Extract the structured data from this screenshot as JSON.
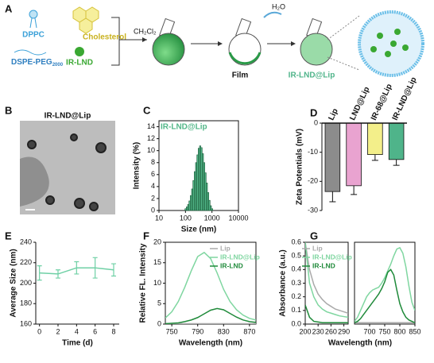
{
  "panel_labels": [
    "A",
    "B",
    "C",
    "D",
    "E",
    "F",
    "G"
  ],
  "schematic": {
    "dppc": "DPPC",
    "cholesterol": "Cholesterol",
    "peg": "DSPE-PEG",
    "peg_sub": "2000",
    "irlnd": "IR-LND",
    "solvent": "CH₂Cl₂",
    "water": "H₂O",
    "film": "Film",
    "product": "IR-LND@Lip"
  },
  "tem": {
    "title": "IR-LND@Lip"
  },
  "chart_data": [
    {
      "type": "histogram",
      "title": "IR-LND@Lip",
      "xlabel": "Size (nm)",
      "ylabel": "Intensity (%)",
      "xscale": "log",
      "bins": [
        95.5,
        107.2,
        120.2,
        134.9,
        151.4,
        169.8,
        190.5,
        213.8,
        239.9,
        269.2,
        302.0,
        338.8,
        380.2,
        426.6,
        478.6,
        537.0,
        602.6,
        676.1,
        758.6,
        851.1,
        955.0,
        1071.5
      ],
      "values": [
        0.3,
        0.6,
        1.0,
        1.6,
        2.5,
        3.6,
        5.0,
        6.5,
        8.0,
        9.3,
        10.4,
        10.8,
        10.5,
        9.5,
        8.0,
        6.3,
        4.6,
        3.0,
        1.7,
        0.8,
        0.3
      ],
      "color": "#52b788",
      "xlim": [
        10,
        10000
      ],
      "xticks": [
        10,
        100,
        1000,
        10000
      ],
      "ylim": [
        0,
        15
      ],
      "yticks": [
        0,
        2,
        4,
        6,
        8,
        10,
        12,
        14
      ]
    },
    {
      "type": "bar",
      "ylabel": "Zeta Potentials (mV)",
      "categories": [
        "Lip",
        "LND@Lip",
        "IR-68@Lip",
        "IR-LND@Lip"
      ],
      "values": [
        -23.5,
        -21.5,
        -10.8,
        -12.5
      ],
      "errors": [
        3.5,
        3.0,
        2.0,
        2.0
      ],
      "colors": [
        "#8c8c8c",
        "#e9a3d0",
        "#f3ef8a",
        "#4fb48a"
      ],
      "ylim": [
        -30,
        0
      ],
      "yticks": [
        0,
        -10,
        -20,
        -30
      ]
    },
    {
      "type": "line",
      "xlabel": "Time (d)",
      "ylabel": "Average Size (nm)",
      "x": [
        0,
        2,
        4,
        6,
        8
      ],
      "series": [
        {
          "color": "#6fd0a5",
          "values": [
            210,
            209,
            215,
            215,
            213
          ],
          "errors": [
            7,
            4,
            6,
            10,
            6
          ]
        }
      ],
      "xlim": [
        -0.4,
        8.6
      ],
      "xticks": [
        0,
        2,
        4,
        6,
        8
      ],
      "ylim": [
        160,
        240
      ],
      "yticks": [
        160,
        180,
        200,
        220,
        240
      ]
    },
    {
      "type": "line",
      "xlabel": "Wavelength (nm)",
      "ylabel": "Relative FL. Intensity",
      "legend": "upper right",
      "x": [
        740,
        750,
        760,
        770,
        780,
        790,
        800,
        810,
        820,
        830,
        840,
        850,
        860,
        870,
        880
      ],
      "series": [
        {
          "name": "Lip",
          "color": "#aaaaaa",
          "values": [
            0.1,
            0.1,
            0.1,
            0.1,
            0.1,
            0.1,
            0.1,
            0.1,
            0.1,
            0.1,
            0.1,
            0.1,
            0.1,
            0.1,
            0.1
          ]
        },
        {
          "name": "IR-LND@Lip",
          "color": "#7fd6a0",
          "values": [
            1.5,
            3.0,
            5.5,
            9.0,
            13.0,
            16.5,
            17.5,
            16.0,
            12.5,
            8.5,
            5.5,
            3.5,
            2.2,
            1.4,
            1.0
          ]
        },
        {
          "name": "IR-LND",
          "color": "#1f8a3a",
          "values": [
            0.1,
            0.2,
            0.3,
            0.6,
            1.0,
            1.6,
            2.5,
            3.4,
            3.8,
            3.5,
            2.6,
            1.7,
            1.0,
            0.6,
            0.4
          ]
        }
      ],
      "xlim": [
        740,
        880
      ],
      "xticks": [
        750,
        790,
        830,
        870
      ],
      "ylim": [
        0,
        20
      ],
      "yticks": [
        0,
        5,
        10,
        15,
        20
      ]
    },
    {
      "type": "line",
      "xlabel": "Wavelength (nm)",
      "ylabel": "Absorbance (a.u.)",
      "legend": "upper right",
      "x": [
        200,
        210,
        220,
        230,
        240,
        250,
        260,
        270,
        280,
        290,
        300
      ],
      "series": [
        {
          "name": "Lip",
          "color": "#aaaaaa",
          "values": [
            0.6,
            0.4,
            0.29,
            0.22,
            0.18,
            0.15,
            0.13,
            0.11,
            0.1,
            0.09,
            0.08
          ]
        },
        {
          "name": "IR-LND@Lip",
          "color": "#7fd6a0",
          "values": [
            0.6,
            0.3,
            0.2,
            0.14,
            0.11,
            0.09,
            0.08,
            0.07,
            0.06,
            0.055,
            0.05
          ]
        },
        {
          "name": "IR-LND",
          "color": "#1f8a3a",
          "values": [
            0.14,
            0.05,
            0.02,
            0.015,
            0.01,
            0.01,
            0.01,
            0.01,
            0.01,
            0.01,
            0.01
          ]
        }
      ],
      "xlim": [
        200,
        300
      ],
      "xticks": [
        200,
        230,
        260,
        290
      ],
      "ylim": [
        0,
        0.6
      ],
      "yticks": [
        {
          "value": 0,
          "label": "0.0"
        },
        0.1,
        0.2,
        0.3,
        0.4,
        0.5,
        0.6
      ]
    },
    {
      "type": "line",
      "x": [
        650,
        660,
        670,
        680,
        690,
        700,
        710,
        720,
        730,
        740,
        750,
        760,
        770,
        780,
        790,
        800,
        810,
        820,
        830,
        840,
        850
      ],
      "series": [
        {
          "color": "#aaaaaa",
          "values": [
            0.01,
            0.01,
            0.01,
            0.01,
            0.01,
            0.01,
            0.01,
            0.01,
            0.01,
            0.01,
            0.01,
            0.01,
            0.01,
            0.01,
            0.01,
            0.01,
            0.01,
            0.01,
            0.01,
            0.01,
            0.01
          ]
        },
        {
          "color": "#7fd6a0",
          "values": [
            0.02,
            0.05,
            0.1,
            0.15,
            0.2,
            0.23,
            0.25,
            0.26,
            0.27,
            0.3,
            0.34,
            0.39,
            0.44,
            0.5,
            0.55,
            0.56,
            0.52,
            0.42,
            0.28,
            0.16,
            0.1
          ]
        },
        {
          "color": "#1f8a3a",
          "values": [
            0.01,
            0.02,
            0.04,
            0.07,
            0.1,
            0.13,
            0.16,
            0.19,
            0.22,
            0.26,
            0.31,
            0.38,
            0.4,
            0.36,
            0.25,
            0.15,
            0.09,
            0.05,
            0.03,
            0.02,
            0.01
          ]
        }
      ],
      "xlim": [
        650,
        850
      ],
      "xticks": [
        700,
        750,
        800,
        850
      ],
      "ylim": [
        0,
        0.6
      ]
    }
  ]
}
